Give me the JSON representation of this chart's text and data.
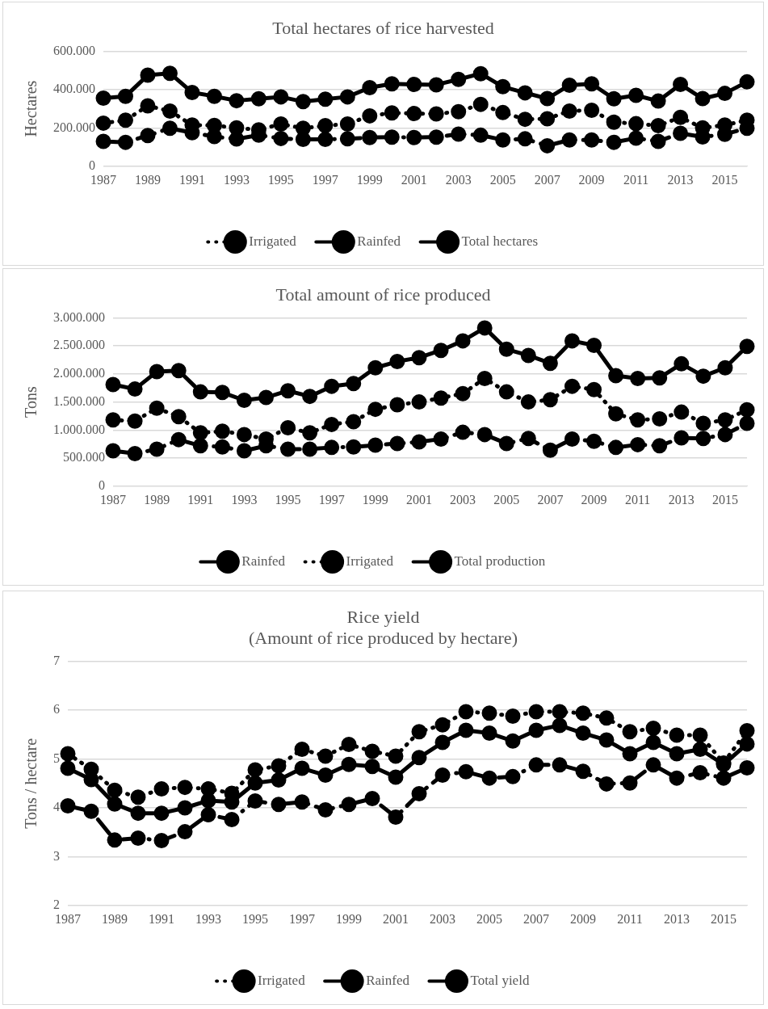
{
  "chart_data": [
    {
      "type": "line",
      "title": "Total hectares of rice harvested",
      "ylabel": "Hectares",
      "categories": [
        "1987",
        null,
        "1989",
        null,
        "1991",
        null,
        "1993",
        null,
        "1995",
        null,
        "1997",
        null,
        "1999",
        null,
        "2001",
        null,
        "2003",
        null,
        "2005",
        null,
        "2007",
        null,
        "2009",
        null,
        "2011",
        null,
        "2013",
        null,
        "2015",
        null
      ],
      "series": [
        {
          "name": "Irrigated",
          "color": "#000000",
          "line_style": "dotted",
          "values": [
            225000,
            240000,
            315000,
            288000,
            215000,
            213000,
            200000,
            190000,
            220000,
            198000,
            212000,
            220000,
            263000,
            278000,
            275000,
            273000,
            285000,
            323000,
            280000,
            245000,
            248000,
            288000,
            292000,
            230000,
            222000,
            212000,
            255000,
            200000,
            215000,
            240000
          ]
        },
        {
          "name": "Rainfed",
          "color": "#000000",
          "line_style": "dashed",
          "values": [
            130000,
            125000,
            160000,
            198000,
            175000,
            155000,
            142000,
            162000,
            145000,
            140000,
            140000,
            143000,
            150000,
            152000,
            150000,
            152000,
            168000,
            162000,
            137000,
            143000,
            107000,
            137000,
            137000,
            125000,
            147000,
            130000,
            172000,
            153000,
            167000,
            198000
          ]
        },
        {
          "name": "Total hectares",
          "color": "#000000",
          "line_style": "solid",
          "values": [
            355000,
            365000,
            475000,
            485000,
            385000,
            365000,
            342000,
            352000,
            362000,
            337000,
            350000,
            362000,
            410000,
            430000,
            427000,
            425000,
            453000,
            483000,
            415000,
            383000,
            353000,
            423000,
            430000,
            352000,
            370000,
            340000,
            427000,
            353000,
            380000,
            440000
          ]
        }
      ],
      "ylim": [
        0,
        600000
      ],
      "yticks": [
        0,
        {
          "value": 200000,
          "label": "200.000"
        },
        {
          "value": 400000,
          "label": "400.000"
        },
        {
          "value": 600000,
          "label": "600.000"
        }
      ],
      "grid": "y",
      "legend": "bottom",
      "marker": "circle"
    },
    {
      "type": "line",
      "title": "Total amount of rice produced",
      "ylabel": "Tons",
      "categories": [
        "1987",
        null,
        "1989",
        null,
        "1991",
        null,
        "1993",
        null,
        "1995",
        null,
        "1997",
        null,
        "1999",
        null,
        "2001",
        null,
        "2003",
        null,
        "2005",
        null,
        "2007",
        null,
        "2009",
        null,
        "2011",
        null,
        "2013",
        null,
        "2015",
        null
      ],
      "series": [
        {
          "name": "Rainfed",
          "color": "#000000",
          "line_style": "dashed",
          "values": [
            630000,
            580000,
            660000,
            830000,
            720000,
            700000,
            630000,
            720000,
            660000,
            660000,
            690000,
            700000,
            730000,
            760000,
            790000,
            840000,
            960000,
            920000,
            760000,
            850000,
            640000,
            840000,
            800000,
            690000,
            740000,
            720000,
            860000,
            850000,
            920000,
            1120000
          ]
        },
        {
          "name": "Irrigated",
          "color": "#000000",
          "line_style": "dotted",
          "values": [
            1180000,
            1160000,
            1390000,
            1240000,
            950000,
            980000,
            920000,
            840000,
            1040000,
            950000,
            1100000,
            1150000,
            1370000,
            1450000,
            1500000,
            1570000,
            1650000,
            1920000,
            1680000,
            1500000,
            1540000,
            1780000,
            1720000,
            1290000,
            1180000,
            1200000,
            1320000,
            1120000,
            1180000,
            1360000
          ]
        },
        {
          "name": "Total production",
          "color": "#000000",
          "line_style": "solid",
          "values": [
            1810000,
            1730000,
            2040000,
            2060000,
            1680000,
            1670000,
            1530000,
            1580000,
            1700000,
            1600000,
            1780000,
            1830000,
            2110000,
            2220000,
            2290000,
            2420000,
            2590000,
            2820000,
            2440000,
            2330000,
            2190000,
            2590000,
            2510000,
            1970000,
            1920000,
            1930000,
            2180000,
            1960000,
            2110000,
            2490000
          ]
        }
      ],
      "ylim": [
        0,
        3000000
      ],
      "yticks": [
        0,
        {
          "value": 500000,
          "label": "500.000"
        },
        {
          "value": 1000000,
          "label": "1.000.000"
        },
        {
          "value": 1500000,
          "label": "1.500.000"
        },
        {
          "value": 2000000,
          "label": "2.000.000"
        },
        {
          "value": 2500000,
          "label": "2.500.000"
        },
        {
          "value": 3000000,
          "label": "3.000.000"
        }
      ],
      "grid": "y",
      "legend": "bottom",
      "marker": "circle"
    },
    {
      "type": "line",
      "title": "Rice yield\n(Amount of rice produced by hectare)",
      "ylabel": "Tons / hectare",
      "categories": [
        "1987",
        null,
        "1989",
        null,
        "1991",
        null,
        "1993",
        null,
        "1995",
        null,
        "1997",
        null,
        "1999",
        null,
        "2001",
        null,
        "2003",
        null,
        "2005",
        null,
        "2007",
        null,
        "2009",
        null,
        "2011",
        null,
        "2013",
        null,
        "2015",
        null
      ],
      "series": [
        {
          "name": "Irrigated",
          "color": "#000000",
          "line_style": "dotted",
          "values": [
            5.11,
            4.79,
            4.36,
            4.22,
            4.39,
            4.42,
            4.39,
            4.3,
            4.78,
            4.86,
            5.2,
            5.06,
            5.3,
            5.16,
            5.06,
            5.56,
            5.7,
            5.97,
            5.94,
            5.88,
            5.97,
            5.97,
            5.94,
            5.84,
            5.56,
            5.63,
            5.49,
            5.49,
            4.92,
            5.58
          ]
        },
        {
          "name": "Rainfed",
          "color": "#000000",
          "line_style": "dashed",
          "values": [
            4.04,
            3.93,
            3.34,
            3.38,
            3.33,
            3.51,
            3.86,
            3.76,
            4.14,
            4.07,
            4.12,
            3.96,
            4.07,
            4.19,
            3.81,
            4.29,
            4.67,
            4.74,
            4.61,
            4.64,
            4.88,
            4.88,
            4.75,
            4.49,
            4.51,
            4.88,
            4.61,
            4.72,
            4.61,
            4.82
          ]
        },
        {
          "name": "Total yield",
          "color": "#000000",
          "line_style": "solid",
          "values": [
            4.81,
            4.58,
            4.08,
            3.89,
            3.89,
            4.0,
            4.15,
            4.12,
            4.51,
            4.57,
            4.81,
            4.67,
            4.89,
            4.85,
            4.63,
            5.03,
            5.34,
            5.59,
            5.53,
            5.37,
            5.59,
            5.69,
            5.53,
            5.39,
            5.11,
            5.34,
            5.11,
            5.2,
            4.89,
            5.31
          ]
        }
      ],
      "ylim": [
        2,
        7
      ],
      "yticks": [
        2,
        3,
        4,
        5,
        6,
        7
      ],
      "grid": "y",
      "legend": "bottom",
      "marker": "circle"
    }
  ]
}
